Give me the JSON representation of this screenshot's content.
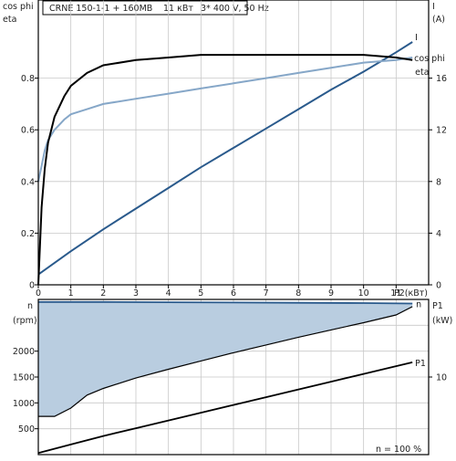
{
  "header": {
    "model": "CRNE 150-1-1 + 160MB",
    "power": "11 кВт",
    "supply": "3* 400 V, 50 Hz"
  },
  "chart_data": [
    {
      "type": "line",
      "title": "CRNE 150-1-1 + 160MB   11 кВт   3* 400 V, 50 Hz",
      "xlabel": "P2(кВт)",
      "x_ticks": [
        "0",
        "1",
        "2",
        "3",
        "4",
        "5",
        "6",
        "7",
        "8",
        "9",
        "10",
        "11"
      ],
      "xlim": [
        0,
        12
      ],
      "left_axis": {
        "label_line1": "cos phi",
        "label_line2": "eta",
        "ylim": [
          0,
          1.0
        ],
        "ticks": [
          "0",
          "0.2",
          "0.4",
          "0.6",
          "0.8"
        ]
      },
      "right_axis": {
        "label_line1": "I",
        "label_line2": "(A)",
        "ylim": [
          0,
          20
        ],
        "ticks": [
          "0",
          "4",
          "8",
          "12",
          "16"
        ]
      },
      "grid": true,
      "series": [
        {
          "name": "I",
          "axis": "right",
          "color": "#2a5a8c",
          "points": [
            [
              0,
              0.8
            ],
            [
              1,
              2.6
            ],
            [
              2,
              4.3
            ],
            [
              3,
              5.9
            ],
            [
              4,
              7.5
            ],
            [
              5,
              9.1
            ],
            [
              6,
              10.6
            ],
            [
              7,
              12.1
            ],
            [
              8,
              13.6
            ],
            [
              9,
              15.1
            ],
            [
              10,
              16.5
            ],
            [
              11,
              18.0
            ],
            [
              11.5,
              18.8
            ]
          ]
        },
        {
          "name": "cos phi",
          "axis": "left",
          "color": "#86a7c8",
          "points": [
            [
              0,
              0.4
            ],
            [
              0.1,
              0.46
            ],
            [
              0.2,
              0.52
            ],
            [
              0.3,
              0.56
            ],
            [
              0.5,
              0.6
            ],
            [
              0.8,
              0.64
            ],
            [
              1,
              0.66
            ],
            [
              1.5,
              0.68
            ],
            [
              2,
              0.7
            ],
            [
              3,
              0.72
            ],
            [
              4,
              0.74
            ],
            [
              5,
              0.76
            ],
            [
              6,
              0.78
            ],
            [
              7,
              0.8
            ],
            [
              8,
              0.82
            ],
            [
              9,
              0.84
            ],
            [
              10,
              0.86
            ],
            [
              11,
              0.87
            ],
            [
              11.5,
              0.88
            ]
          ]
        },
        {
          "name": "eta",
          "axis": "left",
          "color": "#000000",
          "points": [
            [
              0,
              0.0
            ],
            [
              0.1,
              0.3
            ],
            [
              0.2,
              0.45
            ],
            [
              0.3,
              0.55
            ],
            [
              0.5,
              0.65
            ],
            [
              0.8,
              0.73
            ],
            [
              1,
              0.77
            ],
            [
              1.5,
              0.82
            ],
            [
              2,
              0.85
            ],
            [
              3,
              0.87
            ],
            [
              4,
              0.88
            ],
            [
              5,
              0.89
            ],
            [
              6,
              0.89
            ],
            [
              7,
              0.89
            ],
            [
              8,
              0.89
            ],
            [
              9,
              0.89
            ],
            [
              10,
              0.89
            ],
            [
              11,
              0.88
            ],
            [
              11.5,
              0.87
            ]
          ]
        }
      ]
    },
    {
      "type": "area",
      "left_axis": {
        "label_line1": "n",
        "label_line2": "(rpm)",
        "ylim": [
          0,
          3000
        ],
        "ticks": [
          "500",
          "1000",
          "1500",
          "2000"
        ]
      },
      "right_axis": {
        "label_line1": "P1",
        "label_line2": "(kW)",
        "ylim": [
          0,
          20
        ],
        "ticks": [
          "10"
        ]
      },
      "xlim": [
        0,
        12
      ],
      "annotation": "n  = 100 %",
      "fill_color": "#b9cde0",
      "series": [
        {
          "name": "n",
          "axis": "left",
          "color": "#2a5a8c",
          "points": [
            [
              0,
              2950
            ],
            [
              2,
              2950
            ],
            [
              4,
              2945
            ],
            [
              6,
              2940
            ],
            [
              8,
              2935
            ],
            [
              10,
              2930
            ],
            [
              11.5,
              2920
            ]
          ]
        },
        {
          "name": "n-lower",
          "axis": "left",
          "color": "#000000",
          "points": [
            [
              0,
              740
            ],
            [
              0.5,
              740
            ],
            [
              1,
              900
            ],
            [
              1.5,
              1150
            ],
            [
              2,
              1280
            ],
            [
              3,
              1480
            ],
            [
              4,
              1650
            ],
            [
              5,
              1810
            ],
            [
              6,
              1970
            ],
            [
              7,
              2120
            ],
            [
              8,
              2270
            ],
            [
              9,
              2410
            ],
            [
              10,
              2550
            ],
            [
              11,
              2700
            ],
            [
              11.5,
              2860
            ]
          ]
        },
        {
          "name": "P1",
          "axis": "right",
          "color": "#000000",
          "points": [
            [
              0,
              0.2
            ],
            [
              1,
              1.3
            ],
            [
              2,
              2.4
            ],
            [
              3,
              3.4
            ],
            [
              4,
              4.4
            ],
            [
              5,
              5.4
            ],
            [
              6,
              6.4
            ],
            [
              7,
              7.4
            ],
            [
              8,
              8.4
            ],
            [
              9,
              9.4
            ],
            [
              10,
              10.4
            ],
            [
              11,
              11.4
            ],
            [
              11.5,
              11.9
            ]
          ]
        }
      ]
    }
  ]
}
